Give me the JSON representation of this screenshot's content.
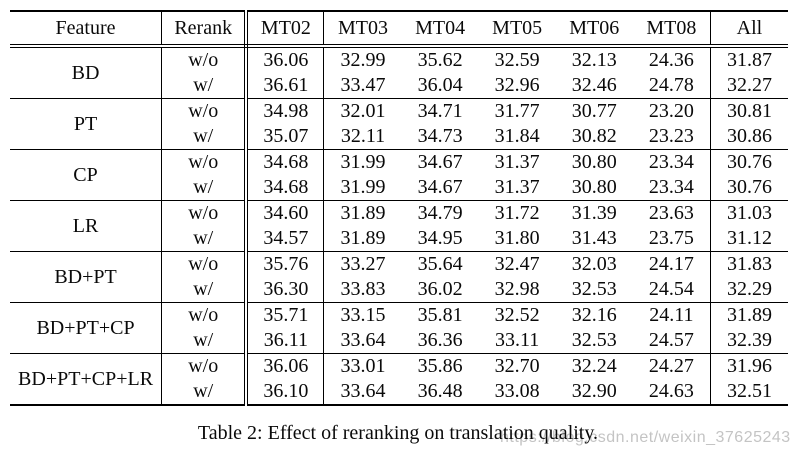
{
  "caption": "Table 2: Effect of reranking on translation quality.",
  "watermark": "https://blog.csdn.net/weixin_37625243",
  "colors": {
    "background": "#ffffff",
    "text": "#0a0a0a",
    "rule": "#000000",
    "watermark": "#c1c1c1"
  },
  "table": {
    "headers": [
      "Feature",
      "Rerank",
      "MT02",
      "MT03",
      "MT04",
      "MT05",
      "MT06",
      "MT08",
      "All"
    ],
    "groups": [
      {
        "feature": "BD",
        "rows": [
          {
            "rerank": "w/o",
            "values": [
              "36.06",
              "32.99",
              "35.62",
              "32.59",
              "32.13",
              "24.36",
              "31.87"
            ],
            "bold": []
          },
          {
            "rerank": "w/",
            "values": [
              "36.61",
              "33.47",
              "36.04",
              "32.96",
              "32.46",
              "24.78",
              "32.27"
            ],
            "bold": [
              0,
              5
            ]
          }
        ]
      },
      {
        "feature": "PT",
        "rows": [
          {
            "rerank": "w/o",
            "values": [
              "34.98",
              "32.01",
              "34.71",
              "31.77",
              "30.77",
              "23.20",
              "30.81"
            ],
            "bold": []
          },
          {
            "rerank": "w/",
            "values": [
              "35.07",
              "32.11",
              "34.73",
              "31.84",
              "30.82",
              "23.23",
              "30.86"
            ],
            "bold": []
          }
        ]
      },
      {
        "feature": "CP",
        "rows": [
          {
            "rerank": "w/o",
            "values": [
              "34.68",
              "31.99",
              "34.67",
              "31.37",
              "30.80",
              "23.34",
              "30.76"
            ],
            "bold": []
          },
          {
            "rerank": "w/",
            "values": [
              "34.68",
              "31.99",
              "34.67",
              "31.37",
              "30.80",
              "23.34",
              "30.76"
            ],
            "bold": []
          }
        ]
      },
      {
        "feature": "LR",
        "rows": [
          {
            "rerank": "w/o",
            "values": [
              "34.60",
              "31.89",
              "34.79",
              "31.72",
              "31.39",
              "23.63",
              "31.03"
            ],
            "bold": []
          },
          {
            "rerank": "w/",
            "values": [
              "34.57",
              "31.89",
              "34.95",
              "31.80",
              "31.43",
              "23.75",
              "31.12"
            ],
            "bold": []
          }
        ]
      },
      {
        "feature": "BD+PT",
        "rows": [
          {
            "rerank": "w/o",
            "values": [
              "35.76",
              "33.27",
              "35.64",
              "32.47",
              "32.03",
              "24.17",
              "31.83"
            ],
            "bold": []
          },
          {
            "rerank": "w/",
            "values": [
              "36.30",
              "33.83",
              "36.02",
              "32.98",
              "32.53",
              "24.54",
              "32.29"
            ],
            "bold": [
              1
            ]
          }
        ]
      },
      {
        "feature": "BD+PT+CP",
        "rows": [
          {
            "rerank": "w/o",
            "values": [
              "35.71",
              "33.15",
              "35.81",
              "32.52",
              "32.16",
              "24.11",
              "31.89"
            ],
            "bold": []
          },
          {
            "rerank": "w/",
            "values": [
              "36.11",
              "33.64",
              "36.36",
              "33.11",
              "32.53",
              "24.57",
              "32.39"
            ],
            "bold": [
              3
            ]
          }
        ]
      },
      {
        "feature": "BD+PT+CP+LR",
        "rows": [
          {
            "rerank": "w/o",
            "values": [
              "36.06",
              "33.01",
              "35.86",
              "32.70",
              "32.24",
              "24.27",
              "31.96"
            ],
            "bold": []
          },
          {
            "rerank": "w/",
            "values": [
              "36.10",
              "33.64",
              "36.48",
              "33.08",
              "32.90",
              "24.63",
              "32.51"
            ],
            "bold": [
              2,
              4,
              6
            ]
          }
        ]
      }
    ]
  }
}
